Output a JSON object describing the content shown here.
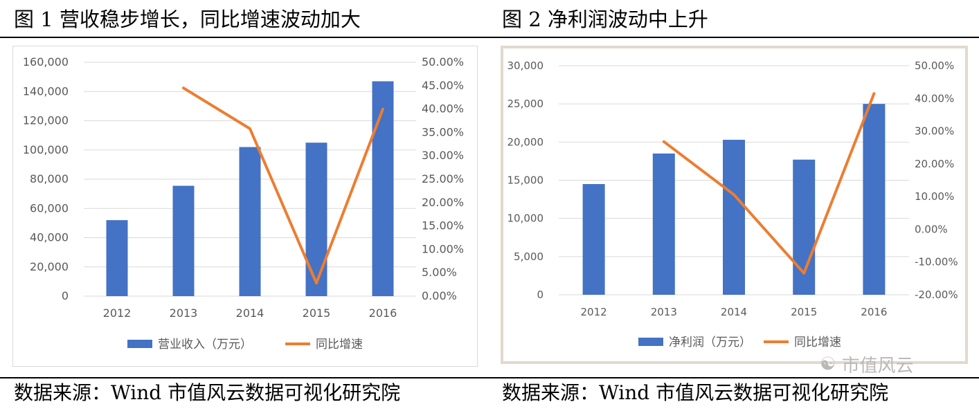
{
  "figures": [
    {
      "title": "图 1  营收稳步增长，同比增速波动加大"
    },
    {
      "title": "图 2  净利润波动中上升"
    }
  ],
  "sources": [
    "数据来源：Wind  市值风云数据可视化研究院",
    "数据来源：Wind  市值风云数据可视化研究院"
  ],
  "watermark": "市值风云",
  "colors": {
    "bar": "#4472c4",
    "line": "#ed7d31",
    "grid": "#d9d9d9",
    "axis_text": "#595959"
  },
  "chart_data": [
    {
      "type": "bar",
      "title": "图 1  营收稳步增长，同比增速波动加大",
      "categories": [
        "2012",
        "2013",
        "2014",
        "2015",
        "2016"
      ],
      "series": [
        {
          "name": "营业收入（万元）",
          "type": "bar",
          "axis": "left",
          "values": [
            52000,
            75500,
            102000,
            105000,
            147000
          ]
        },
        {
          "name": "同比增速",
          "type": "line",
          "axis": "right",
          "values": [
            null,
            44.5,
            35.8,
            2.8,
            40.0
          ]
        }
      ],
      "ylim_left": [
        0,
        160000
      ],
      "yticks_left": [
        "160,000",
        "140,000",
        "120,000",
        "100,000",
        "80,000",
        "60,000",
        "40,000",
        "20,000",
        "0"
      ],
      "ylim_right": [
        0,
        50
      ],
      "yticks_right": [
        "50.00%",
        "45.00%",
        "40.00%",
        "35.00%",
        "30.00%",
        "25.00%",
        "20.00%",
        "15.00%",
        "10.00%",
        "5.00%",
        "0.00%"
      ],
      "legend": [
        "营业收入（万元）",
        "同比增速"
      ],
      "legend_position": "bottom",
      "grid": true
    },
    {
      "type": "bar",
      "title": "图 2  净利润波动中上升",
      "categories": [
        "2012",
        "2013",
        "2014",
        "2015",
        "2016"
      ],
      "series": [
        {
          "name": "净利润（万元）",
          "type": "bar",
          "axis": "left",
          "values": [
            14500,
            18500,
            20300,
            17700,
            25000
          ]
        },
        {
          "name": "同比增速",
          "type": "line",
          "axis": "right",
          "values": [
            null,
            26.8,
            10.6,
            -13.4,
            41.5
          ]
        }
      ],
      "ylim_left": [
        0,
        30000
      ],
      "yticks_left": [
        "30,000",
        "25,000",
        "20,000",
        "15,000",
        "10,000",
        "5,000",
        "0"
      ],
      "ylim_right": [
        -20,
        50
      ],
      "yticks_right": [
        "50.00%",
        "40.00%",
        "30.00%",
        "20.00%",
        "10.00%",
        "0.00%",
        "-10.00%",
        "-20.00%"
      ],
      "legend": [
        "净利润（万元）",
        "同比增速"
      ],
      "legend_position": "bottom",
      "grid": true
    }
  ]
}
